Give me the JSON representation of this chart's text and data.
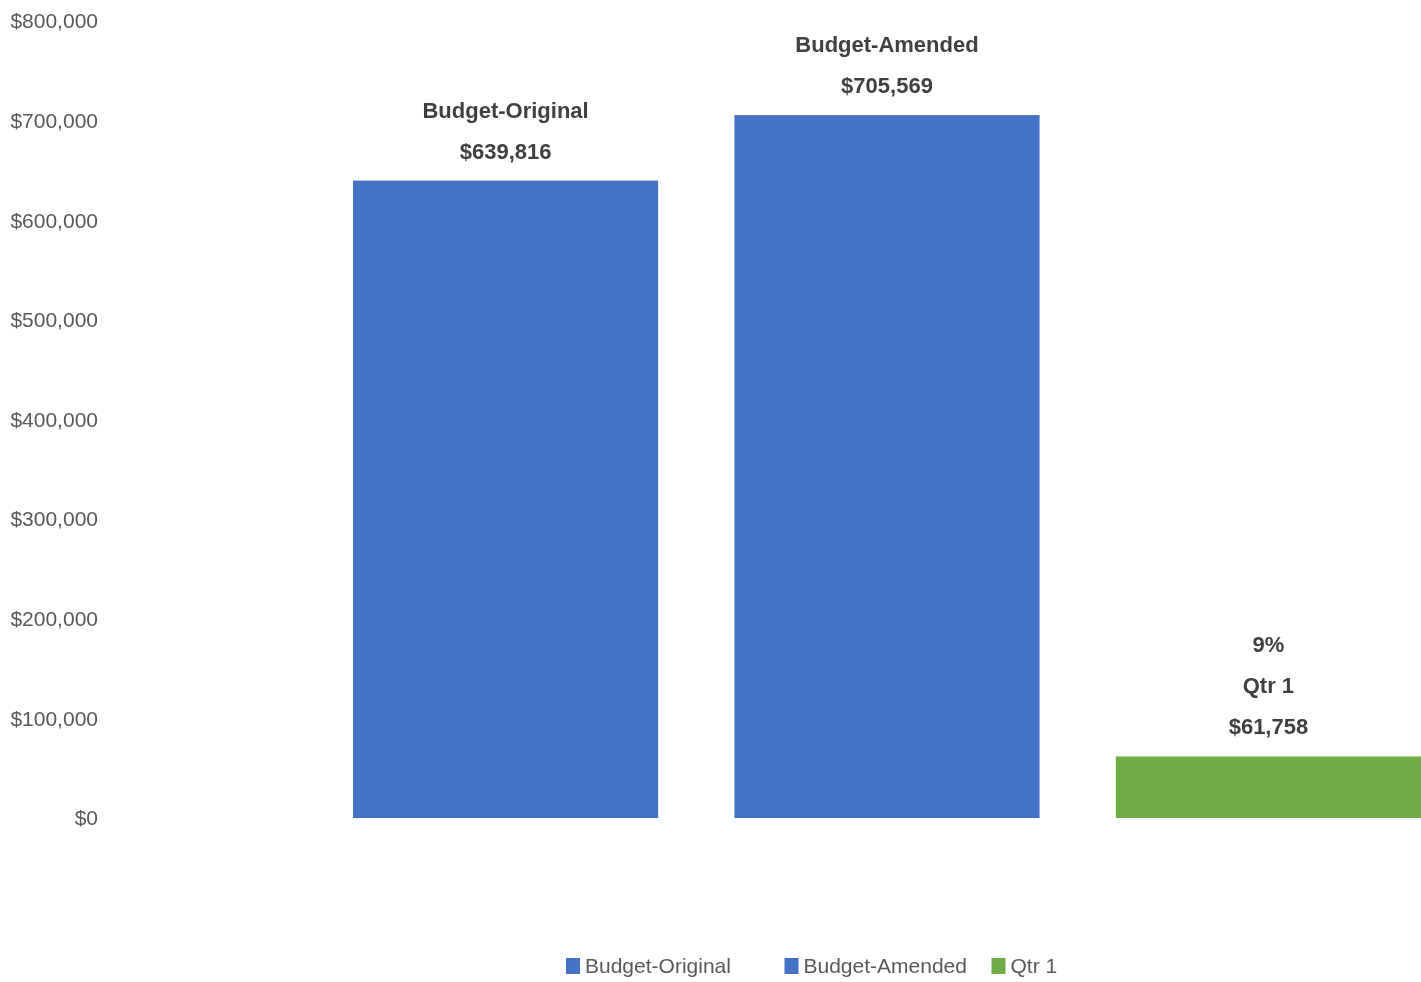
{
  "chart_data": {
    "type": "bar",
    "categories": [
      null
    ],
    "series": [
      {
        "name": "Budget-Original",
        "color": "#4472c4",
        "values": [
          639816
        ],
        "value_labels": [
          "Budget-Original\n$639,816"
        ]
      },
      {
        "name": "Budget-Amended",
        "color": "#4472c4",
        "values": [
          705569
        ],
        "value_labels": [
          "Budget-Amended\n$705,569"
        ]
      },
      {
        "name": "Qtr 1",
        "color": "#70ad47",
        "values": [
          61758
        ],
        "value_labels": [
          "9%\nQtr 1\n$61,758"
        ]
      }
    ],
    "ylim": [
      0,
      800000
    ],
    "yticks": [
      {
        "value": 0,
        "label": "$0"
      },
      {
        "value": 100000,
        "label": "$100,000"
      },
      {
        "value": 200000,
        "label": "$200,000"
      },
      {
        "value": 300000,
        "label": "$300,000"
      },
      {
        "value": 400000,
        "label": "$400,000"
      },
      {
        "value": 500000,
        "label": "$500,000"
      },
      {
        "value": 600000,
        "label": "$600,000"
      },
      {
        "value": 700000,
        "label": "$700,000"
      },
      {
        "value": 800000,
        "label": "$800,000"
      }
    ],
    "grid": false,
    "legend": "bottom"
  }
}
